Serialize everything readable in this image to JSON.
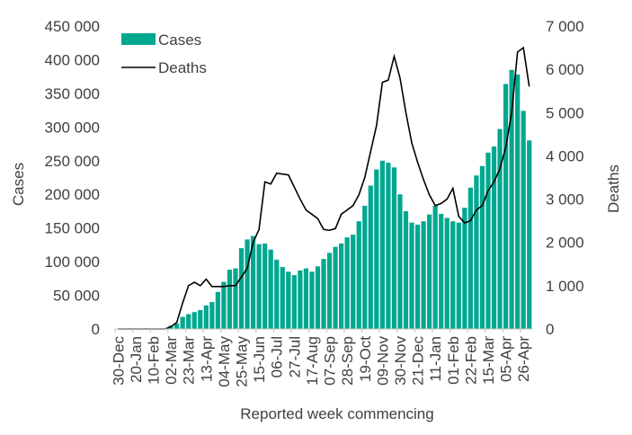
{
  "chart_data": {
    "type": "bar+line",
    "x_label": "Reported week commencing",
    "y_left_label": "Cases",
    "y_right_label": "Deaths",
    "y_left_range": [
      0,
      450000
    ],
    "y_right_range": [
      0,
      7000
    ],
    "y_left_ticks": [
      "0",
      "50 000",
      "100 000",
      "150 000",
      "200 000",
      "250 000",
      "300 000",
      "350 000",
      "400 000",
      "450 000"
    ],
    "y_right_ticks": [
      "0",
      "1 000",
      "2 000",
      "3 000",
      "4 000",
      "5 000",
      "6 000",
      "7 000"
    ],
    "tick_labels": [
      "30-Dec",
      "20-Jan",
      "10-Feb",
      "02-Mar",
      "23-Mar",
      "13-Apr",
      "04-May",
      "25-May",
      "15-Jun",
      "06-Jul",
      "27-Jul",
      "17-Aug",
      "07-Sep",
      "28-Sep",
      "19-Oct",
      "09-Nov",
      "30-Nov",
      "21-Dec",
      "11-Jan",
      "01-Feb",
      "22-Feb",
      "15-Mar",
      "05-Apr",
      "26-Apr"
    ],
    "grid": false,
    "legend_position": "top-left",
    "series": [
      {
        "name": "Cases",
        "type": "bar",
        "axis": "left",
        "color": "#00a88f",
        "values": [
          0,
          0,
          0,
          0,
          0,
          0,
          0,
          0,
          0,
          5000,
          8000,
          18000,
          22000,
          25000,
          28000,
          35000,
          40000,
          55000,
          70000,
          88000,
          90000,
          120000,
          133000,
          138000,
          126000,
          127000,
          118000,
          103000,
          92000,
          85000,
          80000,
          87000,
          90000,
          85000,
          93000,
          104000,
          113000,
          122000,
          127000,
          136000,
          140000,
          160000,
          183000,
          213000,
          237000,
          250000,
          247000,
          240000,
          200000,
          175000,
          158000,
          155000,
          160000,
          170000,
          183000,
          171000,
          165000,
          160000,
          158000,
          180000,
          210000,
          228000,
          242000,
          262000,
          271000,
          297000,
          364000,
          385000,
          378000,
          324000,
          280000
        ]
      },
      {
        "name": "Deaths",
        "type": "line",
        "axis": "right",
        "color": "#000000",
        "values": [
          0,
          0,
          0,
          0,
          0,
          0,
          0,
          0,
          0,
          50,
          150,
          600,
          1000,
          1080,
          1000,
          1150,
          980,
          980,
          980,
          1000,
          1000,
          1200,
          1400,
          2000,
          2300,
          3400,
          3350,
          3600,
          3580,
          3560,
          3280,
          3000,
          2750,
          2650,
          2550,
          2300,
          2280,
          2320,
          2650,
          2750,
          2850,
          3100,
          3500,
          4100,
          4700,
          5700,
          5750,
          6300,
          5800,
          5000,
          4300,
          3850,
          3450,
          3100,
          2850,
          2900,
          3000,
          3250,
          2600,
          2450,
          2500,
          2750,
          2850,
          3200,
          3400,
          3700,
          4200,
          5000,
          6400,
          6500,
          5600
        ]
      }
    ]
  }
}
